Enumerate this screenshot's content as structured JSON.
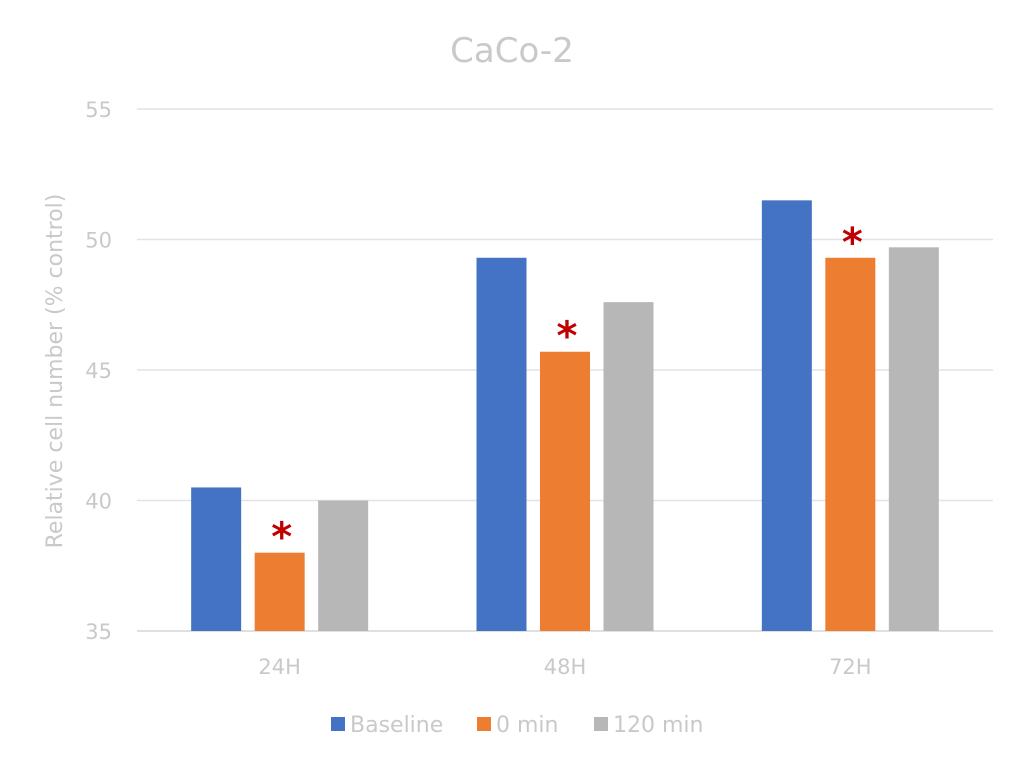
{
  "chart_data": {
    "type": "bar",
    "title": "CaCo-2",
    "xlabel": "",
    "ylabel": "Relative cell number (% control)",
    "categories": [
      "24H",
      "48H",
      "72H"
    ],
    "ylim": [
      35,
      55
    ],
    "yticks": [
      35,
      40,
      45,
      50,
      55
    ],
    "grid": true,
    "legend_position": "bottom",
    "series": [
      {
        "name": "Baseline",
        "color": "#4472c4",
        "values": [
          40.5,
          49.3,
          51.5
        ]
      },
      {
        "name": "0 min",
        "color": "#ed7d31",
        "values": [
          38.0,
          45.7,
          49.3
        ]
      },
      {
        "name": "120 min",
        "color": "#b7b7b7",
        "values": [
          40.0,
          47.6,
          49.7
        ]
      }
    ],
    "annotations": [
      {
        "text": "*",
        "category": "24H",
        "series": "0 min",
        "color": "#c00000"
      },
      {
        "text": "*",
        "category": "48H",
        "series": "0 min",
        "color": "#c00000"
      },
      {
        "text": "*",
        "category": "72H",
        "series": "0 min",
        "color": "#c00000"
      }
    ]
  }
}
